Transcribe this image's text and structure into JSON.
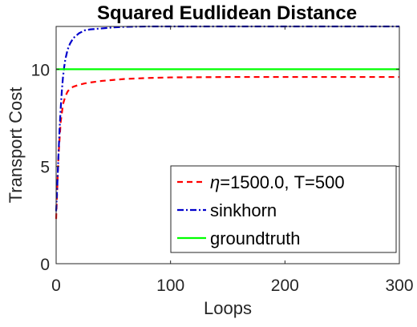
{
  "chart_data": {
    "type": "line",
    "title": "Squared Eudlidean Distance",
    "xlabel": "Loops",
    "ylabel": "Transport Cost",
    "xlim": [
      0,
      300
    ],
    "ylim": [
      0,
      12.2
    ],
    "xticks": [
      0,
      100,
      200,
      300
    ],
    "yticks": [
      0,
      5,
      10
    ],
    "grid": false,
    "legend_position": "bottom-right",
    "series": [
      {
        "name": "η=1500.0, T=500",
        "name_symbol": "η",
        "name_rest": "=1500.0, T=500",
        "color": "#ff0000",
        "style": "dashed",
        "x": [
          0,
          2,
          4,
          6,
          8,
          10,
          12,
          15,
          20,
          25,
          30,
          40,
          50,
          60,
          80,
          100,
          150,
          200,
          250,
          300
        ],
        "y": [
          2.3,
          5.5,
          7.3,
          8.2,
          8.6,
          8.85,
          9.0,
          9.1,
          9.2,
          9.27,
          9.32,
          9.4,
          9.45,
          9.5,
          9.55,
          9.58,
          9.6,
          9.6,
          9.6,
          9.6
        ]
      },
      {
        "name": "sinkhorn",
        "color": "#0000cc",
        "style": "dashdot",
        "x": [
          0,
          1,
          2,
          3,
          4,
          5,
          6,
          7,
          8,
          10,
          12,
          15,
          20,
          25,
          30,
          40,
          50,
          60,
          80,
          100,
          150,
          200,
          250,
          300
        ],
        "y": [
          2.7,
          4.0,
          5.5,
          6.9,
          8.0,
          8.9,
          9.6,
          10.1,
          10.5,
          11.0,
          11.3,
          11.6,
          11.85,
          12.0,
          12.05,
          12.1,
          12.15,
          12.18,
          12.2,
          12.2,
          12.2,
          12.2,
          12.2,
          12.2
        ]
      },
      {
        "name": "groundtruth",
        "color": "#00ff00",
        "style": "solid",
        "x": [
          0,
          300
        ],
        "y": [
          10.0,
          10.0
        ]
      }
    ]
  }
}
